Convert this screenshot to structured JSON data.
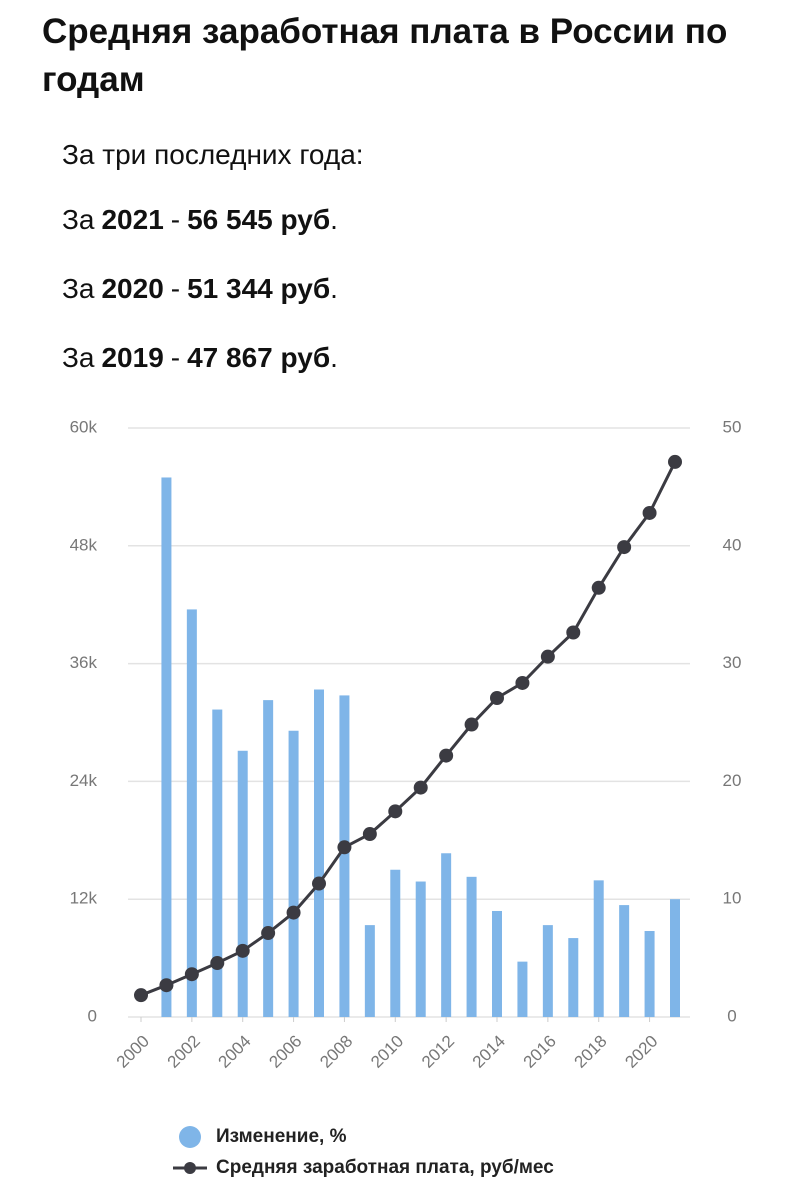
{
  "header": {
    "title": "Средняя заработная плата в России по годам"
  },
  "summary": {
    "intro": "За три последних года:",
    "items": [
      {
        "prefix": "За",
        "year": "2021",
        "separator": "-",
        "amount": "56 545 руб",
        "suffix": "."
      },
      {
        "prefix": "За",
        "year": "2020",
        "separator": "-",
        "amount": "51 344 руб",
        "suffix": "."
      },
      {
        "prefix": "За",
        "year": "2019",
        "separator": "-",
        "amount": "47 867 руб",
        "suffix": "."
      }
    ]
  },
  "chart_data": {
    "type": "combo",
    "x": [
      2000,
      2001,
      2002,
      2003,
      2004,
      2005,
      2006,
      2007,
      2008,
      2009,
      2010,
      2011,
      2012,
      2013,
      2014,
      2015,
      2016,
      2017,
      2018,
      2019,
      2020,
      2021
    ],
    "xlim": [
      2000,
      2021
    ],
    "xticks": [
      2000,
      2002,
      2004,
      2006,
      2008,
      2010,
      2012,
      2014,
      2016,
      2018,
      2020
    ],
    "ylim": [
      0,
      60000
    ],
    "yticks": [
      0,
      {
        "value": 12000,
        "label": "12k"
      },
      {
        "value": 24000,
        "label": "24k"
      },
      {
        "value": 36000,
        "label": "36k"
      },
      {
        "value": 48000,
        "label": "48k"
      },
      {
        "value": 60000,
        "label": "60k"
      }
    ],
    "y2lim": [
      0,
      50
    ],
    "y2ticks": [
      0,
      10,
      20,
      30,
      40,
      50
    ],
    "grid": true,
    "legend": "bottom",
    "series": [
      {
        "name": "Изменение, %",
        "type": "bar",
        "axis": "y2",
        "color": "#7fb5e8",
        "values": [
          null,
          45.8,
          34.6,
          26.1,
          22.6,
          26.9,
          24.3,
          27.8,
          27.3,
          7.8,
          12.5,
          11.5,
          13.9,
          11.9,
          9.0,
          4.7,
          7.8,
          6.7,
          11.6,
          9.5,
          7.3,
          10.0
        ]
      },
      {
        "name": "Средняя заработная плата, руб/мес",
        "type": "line",
        "color": "#3b3b42",
        "values": [
          2223,
          3240,
          4360,
          5499,
          6740,
          8555,
          10634,
          13593,
          17290,
          18638,
          20952,
          23369,
          26629,
          29792,
          32495,
          34030,
          36709,
          39167,
          43724,
          47867,
          51344,
          56545
        ]
      }
    ]
  }
}
